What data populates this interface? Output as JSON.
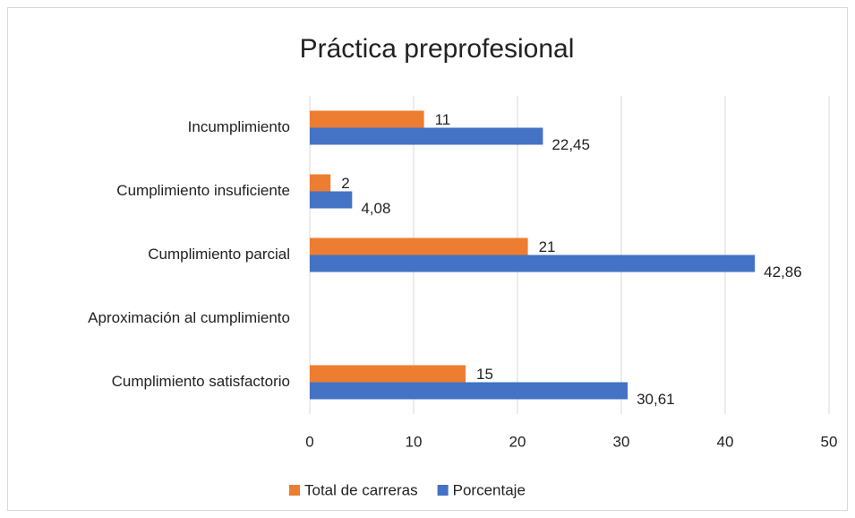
{
  "chart_data": {
    "type": "bar",
    "orientation": "horizontal",
    "title": "Práctica preprofesional",
    "categories": [
      "Incumplimiento",
      "Cumplimiento insuficiente",
      "Cumplimiento parcial",
      "Aproximación al cumplimiento",
      "Cumplimiento satisfactorio"
    ],
    "series": [
      {
        "name": "Total de carreras",
        "color": "#ed7d31",
        "values": [
          11,
          2,
          21,
          null,
          15
        ]
      },
      {
        "name": "Porcentaje",
        "color": "#4472c4",
        "values": [
          22.45,
          4.08,
          42.86,
          null,
          30.61
        ],
        "value_labels": [
          "22,45",
          "4,08",
          "42,86",
          null,
          "30,61"
        ]
      }
    ],
    "xlim": [
      0,
      50
    ],
    "xticks": [
      0,
      10,
      20,
      30,
      40,
      50
    ],
    "grid": true,
    "legend": "bottom"
  }
}
